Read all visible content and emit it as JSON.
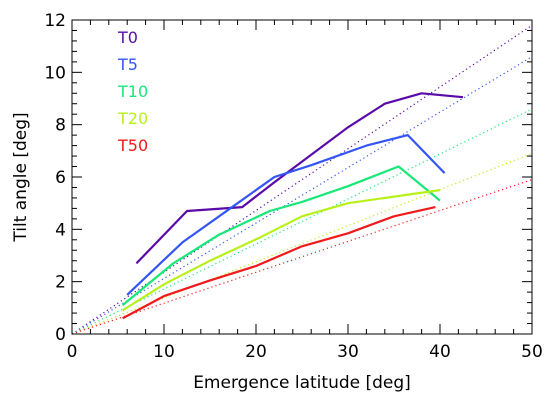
{
  "chart_data": {
    "type": "line",
    "xlabel": "Emergence latitude [deg]",
    "ylabel": "Tilt angle [deg]",
    "xlim": [
      0,
      50
    ],
    "ylim": [
      0,
      12
    ],
    "xticks": [
      0,
      10,
      20,
      30,
      40,
      50
    ],
    "yticks": [
      0,
      2,
      4,
      6,
      8,
      10,
      12
    ],
    "grid": false,
    "legend_position": "top-left",
    "series": [
      {
        "name": "T0",
        "color": "#5a0aa8",
        "points": [
          [
            7,
            2.7
          ],
          [
            12.5,
            4.7
          ],
          [
            18.5,
            4.85
          ],
          [
            22,
            5.8
          ],
          [
            30,
            7.9
          ],
          [
            34,
            8.8
          ],
          [
            38,
            9.2
          ],
          [
            42.5,
            9.05
          ]
        ],
        "fit_slope": 0.236
      },
      {
        "name": "T5",
        "color": "#3355f5",
        "points": [
          [
            6,
            1.5
          ],
          [
            12,
            3.5
          ],
          [
            18,
            5.0
          ],
          [
            22,
            6.0
          ],
          [
            26,
            6.45
          ],
          [
            32,
            7.2
          ],
          [
            36.5,
            7.6
          ],
          [
            40.5,
            6.15
          ]
        ],
        "fit_slope": 0.212
      },
      {
        "name": "T10",
        "color": "#18e878",
        "points": [
          [
            5.5,
            1.1
          ],
          [
            11,
            2.7
          ],
          [
            16,
            3.8
          ],
          [
            21.5,
            4.7
          ],
          [
            25,
            5.05
          ],
          [
            30,
            5.65
          ],
          [
            35.5,
            6.4
          ],
          [
            40,
            5.1
          ]
        ],
        "fit_slope": 0.172
      },
      {
        "name": "T20",
        "color": "#b8f01a",
        "points": [
          [
            5.5,
            0.9
          ],
          [
            10,
            1.9
          ],
          [
            15,
            2.8
          ],
          [
            20.5,
            3.7
          ],
          [
            25,
            4.5
          ],
          [
            30,
            5.0
          ],
          [
            35,
            5.25
          ],
          [
            40,
            5.5
          ]
        ],
        "fit_slope": 0.138
      },
      {
        "name": "T50",
        "color": "#f01a1a",
        "points": [
          [
            5.5,
            0.6
          ],
          [
            10,
            1.45
          ],
          [
            15,
            2.05
          ],
          [
            20,
            2.6
          ],
          [
            25,
            3.35
          ],
          [
            30,
            3.85
          ],
          [
            35,
            4.5
          ],
          [
            39.5,
            4.85
          ]
        ],
        "fit_slope": 0.118
      }
    ]
  }
}
